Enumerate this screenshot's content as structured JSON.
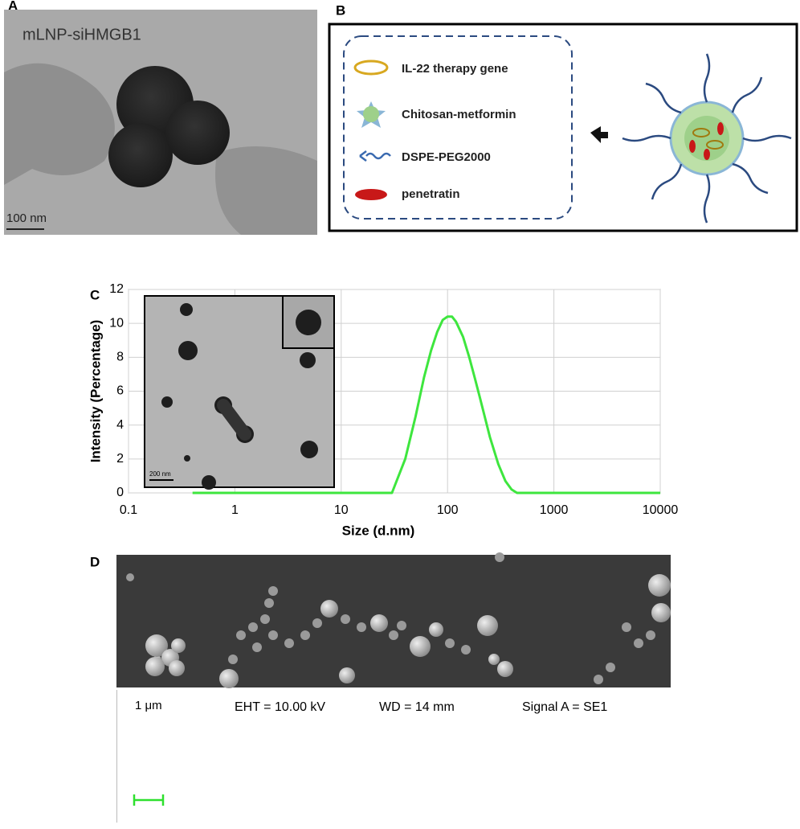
{
  "panel_a": {
    "label": "A",
    "caption": "mLNP-siHMGB1",
    "scale": "100 nm"
  },
  "panel_b": {
    "label": "B",
    "legend": [
      "IL-22 therapy gene",
      "Chitosan-metformin",
      "DSPE-PEG2000",
      "penetratin"
    ]
  },
  "chart_data": {
    "type": "line",
    "panel_label": "C",
    "x_label": "Size (d.nm)",
    "y_label": "Intensity (Percentage)",
    "inset_scale": "200 nm",
    "log_x": true,
    "grid": true,
    "xlim": [
      0.1,
      10000
    ],
    "ylim": [
      0,
      12
    ],
    "xticks": [
      0.1,
      1,
      10,
      100,
      1000,
      10000
    ],
    "yticks": [
      0,
      2,
      4,
      6,
      8,
      10,
      12
    ],
    "series": [
      {
        "color": "#3ee63e",
        "x": [
          0.4,
          30,
          40,
          50,
          60,
          70,
          80,
          90,
          100,
          110,
          120,
          140,
          160,
          180,
          200,
          250,
          300,
          350,
          400,
          450,
          10000
        ],
        "values": [
          0,
          0,
          2.0,
          4.5,
          6.8,
          8.4,
          9.5,
          10.2,
          10.4,
          10.4,
          10.1,
          9.2,
          8.0,
          6.8,
          5.7,
          3.3,
          1.7,
          0.7,
          0.2,
          0,
          0
        ]
      }
    ]
  },
  "panel_d": {
    "label": "D",
    "scale": "1 μm",
    "eht": "EHT = 10.00 kV",
    "wd": "WD =   14 mm",
    "signal": "Signal A = SE1"
  }
}
